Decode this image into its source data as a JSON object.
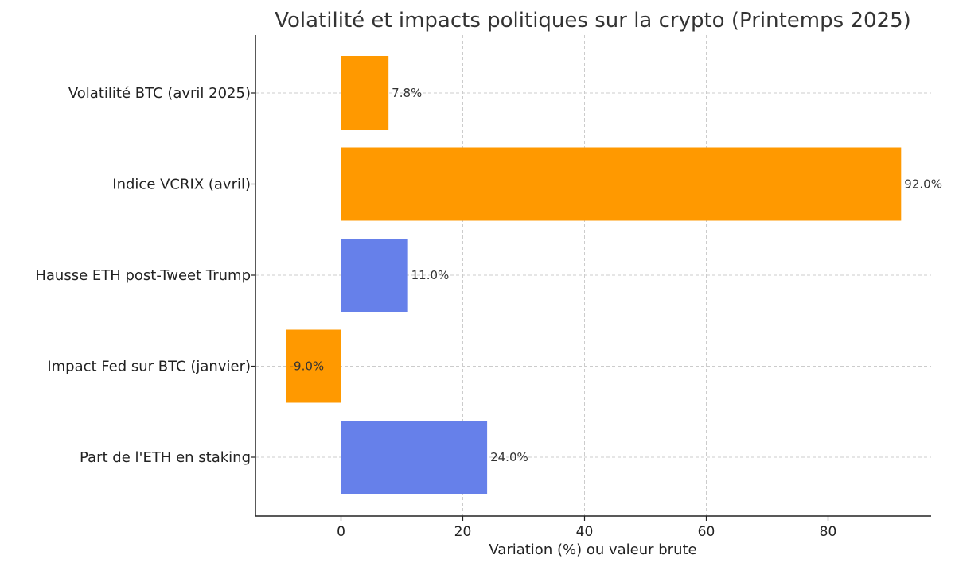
{
  "chart_data": {
    "type": "bar",
    "orientation": "horizontal",
    "title": "Volatilité et impacts politiques sur la crypto (Printemps 2025)",
    "xlabel": "Variation (%) ou valeur brute",
    "ylabel": "",
    "xlim": [
      -14,
      97
    ],
    "xticks": [
      0,
      20,
      40,
      60,
      80
    ],
    "grid": true,
    "categories": [
      "Volatilité BTC (avril 2025)",
      "Indice VCRIX (avril)",
      "Hausse ETH post-Tweet Trump",
      "Impact Fed sur BTC (janvier)",
      "Part de l'ETH en staking"
    ],
    "values": [
      7.8,
      92.0,
      11.0,
      -9.0,
      24.0
    ],
    "value_labels": [
      "7.8%",
      "92.0%",
      "11.0%",
      "-9.0%",
      "24.0%"
    ],
    "colors": [
      "#ff9900",
      "#ff9900",
      "#6680ea",
      "#ff9900",
      "#6680ea"
    ]
  }
}
